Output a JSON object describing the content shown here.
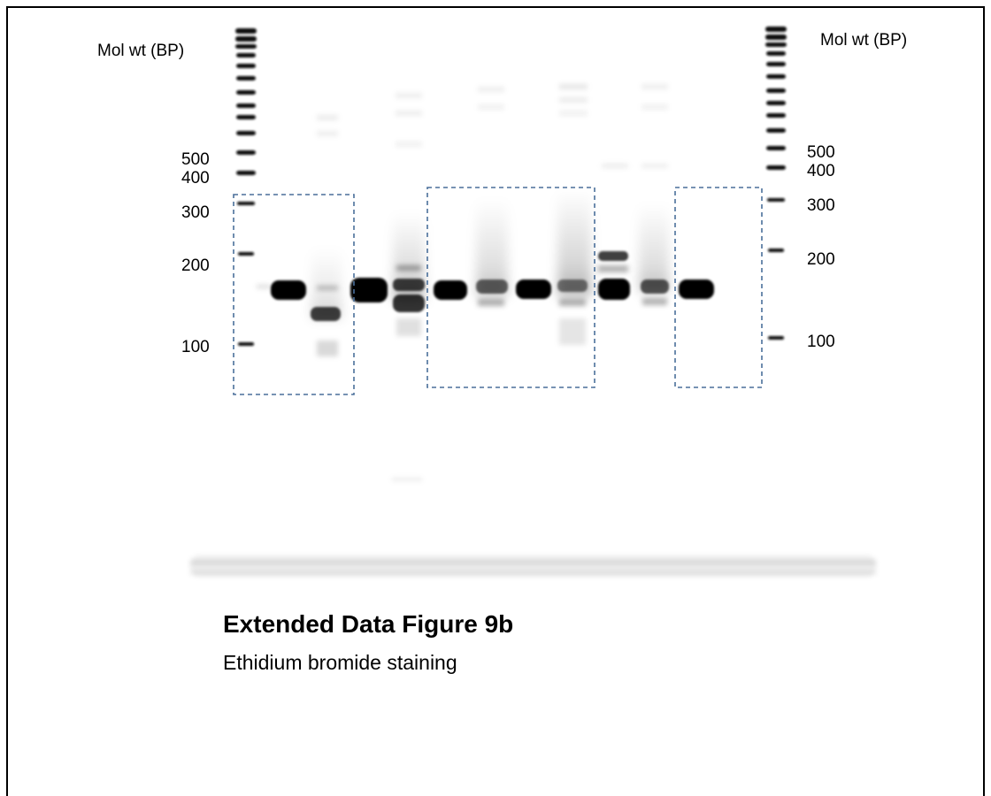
{
  "left_axis": {
    "title": "Mol wt (BP)",
    "ticks": [
      {
        "label": "500",
        "bp": 500
      },
      {
        "label": "400",
        "bp": 400
      },
      {
        "label": "300",
        "bp": 300
      },
      {
        "label": "200",
        "bp": 200
      },
      {
        "label": "100",
        "bp": 100
      }
    ]
  },
  "right_axis": {
    "title": "Mol wt (BP)",
    "ticks": [
      {
        "label": "500",
        "bp": 500
      },
      {
        "label": "400",
        "bp": 400
      },
      {
        "label": "300",
        "bp": 300
      },
      {
        "label": "200",
        "bp": 200
      },
      {
        "label": "100",
        "bp": 100
      }
    ]
  },
  "caption": {
    "title": "Extended Data Figure 9b",
    "subtitle": "Ethidium bromide staining"
  },
  "colors": {
    "band": "#050505",
    "box_dash": "#4a6f9a"
  }
}
